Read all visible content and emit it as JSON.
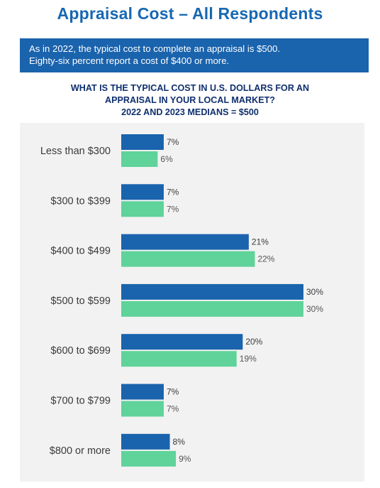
{
  "header": {
    "title": "Appraisal Cost – All Respondents"
  },
  "banner": {
    "line1": "As in 2022, the typical cost to complete an appraisal is $500.",
    "line2": "Eighty-six percent report a cost of $400 or more."
  },
  "question": {
    "line1": "WHAT IS THE TYPICAL COST IN U.S. DOLLARS FOR AN",
    "line2": "APPRAISAL IN YOUR LOCAL MARKET?",
    "line3": "2022 AND 2023 MEDIANS = $500"
  },
  "chart_data": {
    "type": "bar",
    "orientation": "horizontal",
    "categories": [
      "Less than $300",
      "$300 to $399",
      "$400 to $499",
      "$500 to $599",
      "$600 to $699",
      "$700 to $799",
      "$800 or more"
    ],
    "series": [
      {
        "values": [
          7,
          7,
          21,
          30,
          20,
          7,
          8
        ],
        "color": "#1a63ad",
        "labels": [
          "7%",
          "7%",
          "21%",
          "30%",
          "20%",
          "7%",
          "8%"
        ]
      },
      {
        "values": [
          6,
          7,
          22,
          30,
          19,
          7,
          9
        ],
        "color": "#5fd39a",
        "labels": [
          "6%",
          "7%",
          "22%",
          "30%",
          "19%",
          "7%",
          "9%"
        ]
      }
    ],
    "xlim": [
      0,
      30
    ],
    "grid": false,
    "legend": "none"
  }
}
